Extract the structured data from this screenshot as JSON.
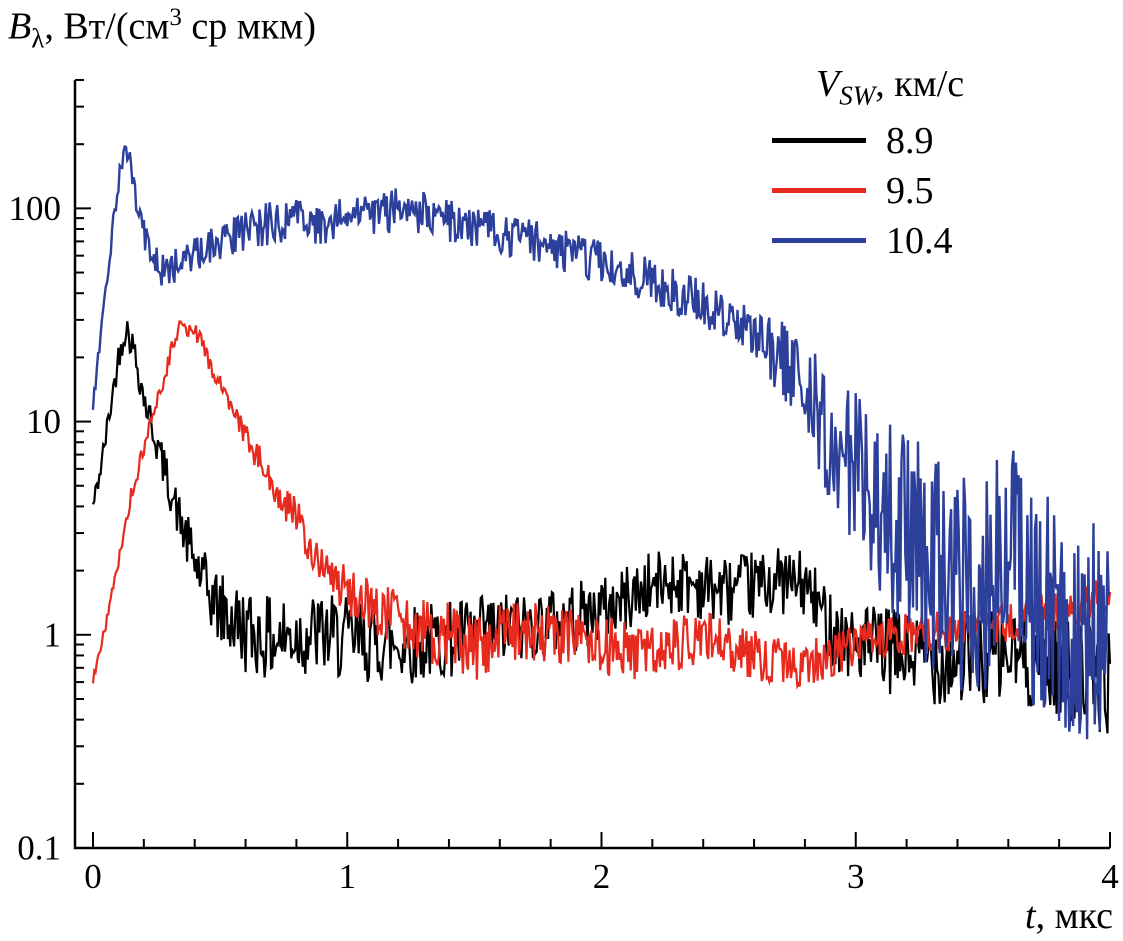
{
  "ylabel": {
    "symbol": "B",
    "subscript": "λ",
    "mid": ", Вт/(см",
    "sup": "3",
    "end": " ср мкм)"
  },
  "xlabel": {
    "symbol": "t",
    "end": ", мкс"
  },
  "legend": {
    "title": {
      "symbol": "V",
      "subscript": "SW",
      "end": ", км/с"
    },
    "items": [
      {
        "label": "8.9",
        "color": "#000000"
      },
      {
        "label": "9.5",
        "color": "#e62a1e"
      },
      {
        "label": "10.4",
        "color": "#2b3f9b"
      }
    ]
  },
  "chart_data": {
    "type": "line",
    "title": "",
    "xlabel": "t, мкс",
    "ylabel": "Bλ, Вт/(см3 ср мкм)",
    "x_scale": "linear",
    "y_scale": "log",
    "xlim": [
      0,
      4
    ],
    "ylim": [
      0.1,
      400
    ],
    "x_ticks": [
      0,
      1,
      2,
      3,
      4
    ],
    "x_tick_labels": [
      "0",
      "1",
      "2",
      "3",
      "4"
    ],
    "x_minor_step": 0.2,
    "y_ticks": [
      0.1,
      1,
      10,
      100
    ],
    "y_tick_labels": [
      "0.1",
      "1",
      "10",
      "100"
    ],
    "grid": false,
    "legend_title": "V_SW, км/с",
    "legend_position": "top-right",
    "seed": 42,
    "series": [
      {
        "name": "8.9",
        "color": "#000000",
        "width": 2.2,
        "anchors": [
          [
            0,
            4
          ],
          [
            0.03,
            6
          ],
          [
            0.06,
            10
          ],
          [
            0.1,
            20
          ],
          [
            0.13,
            28
          ],
          [
            0.16,
            22
          ],
          [
            0.2,
            13
          ],
          [
            0.25,
            8
          ],
          [
            0.3,
            5
          ],
          [
            0.35,
            3.2
          ],
          [
            0.4,
            2.2
          ],
          [
            0.45,
            1.6
          ],
          [
            0.5,
            1.3
          ],
          [
            0.6,
            1.05
          ],
          [
            0.7,
            0.95
          ],
          [
            0.8,
            1.0
          ],
          [
            0.9,
            1.0
          ],
          [
            1.0,
            0.95
          ],
          [
            1.2,
            0.9
          ],
          [
            1.4,
            0.95
          ],
          [
            1.6,
            1.05
          ],
          [
            1.8,
            1.15
          ],
          [
            2.0,
            1.3
          ],
          [
            2.2,
            1.7
          ],
          [
            2.3,
            1.8
          ],
          [
            2.4,
            1.7
          ],
          [
            2.5,
            1.6
          ],
          [
            2.6,
            1.7
          ],
          [
            2.7,
            1.8
          ],
          [
            2.8,
            1.7
          ],
          [
            2.9,
            1.1
          ],
          [
            3.0,
            0.9
          ],
          [
            3.2,
            0.8
          ],
          [
            3.4,
            0.75
          ],
          [
            3.6,
            0.8
          ],
          [
            3.8,
            0.7
          ],
          [
            4.0,
            0.6
          ]
        ],
        "noise_dec": [
          [
            0,
            0.05
          ],
          [
            0.3,
            0.1
          ],
          [
            0.55,
            0.2
          ],
          [
            1.0,
            0.2
          ],
          [
            2.0,
            0.16
          ],
          [
            2.8,
            0.16
          ],
          [
            3.0,
            0.2
          ],
          [
            4.0,
            0.25
          ]
        ]
      },
      {
        "name": "9.5",
        "color": "#e62a1e",
        "width": 2.2,
        "anchors": [
          [
            0,
            0.6
          ],
          [
            0.05,
            1.1
          ],
          [
            0.1,
            2.2
          ],
          [
            0.15,
            4.5
          ],
          [
            0.2,
            7.5
          ],
          [
            0.25,
            12
          ],
          [
            0.3,
            20
          ],
          [
            0.34,
            27
          ],
          [
            0.38,
            28
          ],
          [
            0.42,
            24
          ],
          [
            0.46,
            19
          ],
          [
            0.5,
            15
          ],
          [
            0.55,
            11
          ],
          [
            0.6,
            8.5
          ],
          [
            0.65,
            6.8
          ],
          [
            0.7,
            5.2
          ],
          [
            0.75,
            4.2
          ],
          [
            0.8,
            3.6
          ],
          [
            0.85,
            2.6
          ],
          [
            0.9,
            2.1
          ],
          [
            1.0,
            1.6
          ],
          [
            1.1,
            1.35
          ],
          [
            1.2,
            1.2
          ],
          [
            1.3,
            1.05
          ],
          [
            1.4,
            1.0
          ],
          [
            1.5,
            0.85
          ],
          [
            1.6,
            1.0
          ],
          [
            1.7,
            1.05
          ],
          [
            1.8,
            1.0
          ],
          [
            1.9,
            0.95
          ],
          [
            2.0,
            0.9
          ],
          [
            2.2,
            0.8
          ],
          [
            2.4,
            1.0
          ],
          [
            2.6,
            0.8
          ],
          [
            2.8,
            0.72
          ],
          [
            3.0,
            0.9
          ],
          [
            3.2,
            1.0
          ],
          [
            3.4,
            1.05
          ],
          [
            3.6,
            1.15
          ],
          [
            3.8,
            1.3
          ],
          [
            4.0,
            1.5
          ]
        ],
        "noise_dec": [
          [
            0,
            0.03
          ],
          [
            0.5,
            0.05
          ],
          [
            0.9,
            0.1
          ],
          [
            1.4,
            0.16
          ],
          [
            2.0,
            0.14
          ],
          [
            3.0,
            0.1
          ],
          [
            4.0,
            0.1
          ]
        ]
      },
      {
        "name": "10.4",
        "color": "#2b3f9b",
        "width": 2.4,
        "anchors": [
          [
            0,
            12
          ],
          [
            0.04,
            32
          ],
          [
            0.08,
            85
          ],
          [
            0.11,
            165
          ],
          [
            0.13,
            195
          ],
          [
            0.15,
            150
          ],
          [
            0.18,
            95
          ],
          [
            0.22,
            62
          ],
          [
            0.27,
            50
          ],
          [
            0.33,
            55
          ],
          [
            0.4,
            62
          ],
          [
            0.5,
            70
          ],
          [
            0.6,
            80
          ],
          [
            0.7,
            85
          ],
          [
            0.8,
            88
          ],
          [
            0.9,
            85
          ],
          [
            1.0,
            92
          ],
          [
            1.1,
            90
          ],
          [
            1.2,
            100
          ],
          [
            1.3,
            95
          ],
          [
            1.4,
            88
          ],
          [
            1.5,
            82
          ],
          [
            1.6,
            76
          ],
          [
            1.7,
            72
          ],
          [
            1.8,
            66
          ],
          [
            1.9,
            60
          ],
          [
            2.0,
            56
          ],
          [
            2.1,
            50
          ],
          [
            2.2,
            46
          ],
          [
            2.3,
            40
          ],
          [
            2.4,
            36
          ],
          [
            2.5,
            30
          ],
          [
            2.6,
            25
          ],
          [
            2.7,
            20
          ],
          [
            2.8,
            15
          ],
          [
            2.9,
            8
          ],
          [
            3.0,
            6
          ],
          [
            3.1,
            4.2
          ],
          [
            3.2,
            3.0
          ],
          [
            3.3,
            2.2
          ],
          [
            3.4,
            1.6
          ],
          [
            3.5,
            1.8
          ],
          [
            3.6,
            2.2
          ],
          [
            3.7,
            1.6
          ],
          [
            3.8,
            1.3
          ],
          [
            3.9,
            1.1
          ],
          [
            4.0,
            0.9
          ]
        ],
        "noise_dec": [
          [
            0,
            0.03
          ],
          [
            0.25,
            0.08
          ],
          [
            0.6,
            0.1
          ],
          [
            2.0,
            0.1
          ],
          [
            2.6,
            0.12
          ],
          [
            2.9,
            0.3
          ],
          [
            3.2,
            0.5
          ],
          [
            3.6,
            0.55
          ],
          [
            4.0,
            0.55
          ]
        ]
      }
    ]
  }
}
